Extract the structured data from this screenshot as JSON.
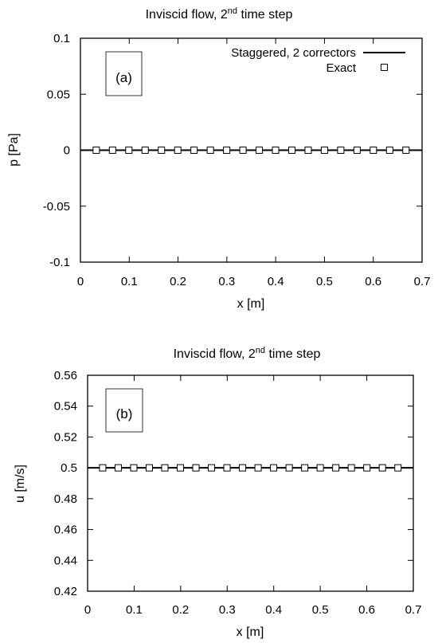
{
  "chart_data": [
    {
      "type": "line",
      "panel_label": "(a)",
      "title": "Inviscid flow, 2",
      "title_sup": "nd",
      "title_suffix": " time step",
      "xlabel": "x [m]",
      "ylabel": "p [Pa]",
      "xlim": [
        0,
        0.7
      ],
      "ylim": [
        -0.1,
        0.1
      ],
      "xticks": [
        "0",
        "0.1",
        "0.2",
        "0.3",
        "0.4",
        "0.5",
        "0.6",
        "0.7"
      ],
      "yticks": [
        "-0.1",
        "-0.05",
        "0",
        "0.05",
        "0.1"
      ],
      "grid": false,
      "legend_position": "top-right",
      "series": [
        {
          "name": "Staggered, 2 correctors",
          "style": "line",
          "x": [
            0,
            0.7
          ],
          "y": [
            0,
            0
          ]
        },
        {
          "name": "Exact",
          "style": "open-square",
          "x": [
            0.0324,
            0.0658,
            0.0992,
            0.1326,
            0.166,
            0.1994,
            0.2328,
            0.2662,
            0.2996,
            0.333,
            0.3664,
            0.3998,
            0.4332,
            0.4666,
            0.5,
            0.5334,
            0.5668,
            0.6002,
            0.6336,
            0.667
          ],
          "y": [
            0,
            0,
            0,
            0,
            0,
            0,
            0,
            0,
            0,
            0,
            0,
            0,
            0,
            0,
            0,
            0,
            0,
            0,
            0,
            0
          ]
        }
      ]
    },
    {
      "type": "line",
      "panel_label": "(b)",
      "title": "Inviscid flow, 2",
      "title_sup": "nd",
      "title_suffix": " time step",
      "xlabel": "x [m]",
      "ylabel": "u [m/s]",
      "xlim": [
        0,
        0.7
      ],
      "ylim": [
        0.42,
        0.56
      ],
      "xticks": [
        "0",
        "0.1",
        "0.2",
        "0.3",
        "0.4",
        "0.5",
        "0.6",
        "0.7"
      ],
      "yticks": [
        "0.42",
        "0.44",
        "0.46",
        "0.48",
        "0.5",
        "0.52",
        "0.54",
        "0.56"
      ],
      "grid": false,
      "legend_position": "none",
      "series": [
        {
          "style": "line",
          "x": [
            0,
            0.7
          ],
          "y": [
            0.5,
            0.5
          ]
        },
        {
          "style": "open-square",
          "x": [
            0.0324,
            0.0658,
            0.0992,
            0.1326,
            0.166,
            0.1994,
            0.2328,
            0.2662,
            0.2996,
            0.333,
            0.3664,
            0.3998,
            0.4332,
            0.4666,
            0.5,
            0.5334,
            0.5668,
            0.6002,
            0.6336,
            0.667
          ],
          "y": [
            0.5,
            0.5,
            0.5,
            0.5,
            0.5,
            0.5,
            0.5,
            0.5,
            0.5,
            0.5,
            0.5,
            0.5,
            0.5,
            0.5,
            0.5,
            0.5,
            0.5,
            0.5,
            0.5,
            0.5
          ]
        }
      ]
    }
  ]
}
